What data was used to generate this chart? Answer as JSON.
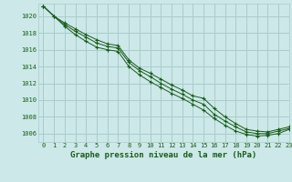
{
  "title": "Graphe pression niveau de la mer (hPa)",
  "bg_color": "#cce8e8",
  "grid_color": "#aacccc",
  "line_color": "#1a5c1a",
  "xlim": [
    -0.5,
    23
  ],
  "ylim": [
    1005.0,
    1021.5
  ],
  "xticks": [
    0,
    1,
    2,
    3,
    4,
    5,
    6,
    7,
    8,
    9,
    10,
    11,
    12,
    13,
    14,
    15,
    16,
    17,
    18,
    19,
    20,
    21,
    22,
    23
  ],
  "yticks": [
    1006,
    1008,
    1010,
    1012,
    1014,
    1016,
    1018,
    1020
  ],
  "series": [
    [
      1021.2,
      1020.0,
      1019.2,
      1018.5,
      1017.8,
      1017.2,
      1016.7,
      1016.5,
      1014.8,
      1013.8,
      1013.2,
      1012.5,
      1011.8,
      1011.2,
      1010.5,
      1010.2,
      1009.0,
      1008.0,
      1007.2,
      1006.5,
      1006.3,
      1006.2,
      1006.5,
      1006.8
    ],
    [
      1021.2,
      1020.0,
      1019.0,
      1018.2,
      1017.5,
      1016.8,
      1016.4,
      1016.2,
      1014.5,
      1013.5,
      1012.8,
      1012.0,
      1011.3,
      1010.7,
      1010.0,
      1009.5,
      1008.3,
      1007.5,
      1006.8,
      1006.2,
      1006.0,
      1006.0,
      1006.3,
      1006.6
    ],
    [
      1021.2,
      1020.0,
      1018.8,
      1017.8,
      1017.0,
      1016.3,
      1016.0,
      1015.8,
      1014.0,
      1013.0,
      1012.2,
      1011.5,
      1010.8,
      1010.2,
      1009.5,
      1008.8,
      1007.8,
      1007.0,
      1006.3,
      1005.9,
      1005.7,
      1005.8,
      1006.0,
      1006.5
    ]
  ],
  "xlabel_fontsize": 6.5,
  "tick_fontsize": 5.0
}
